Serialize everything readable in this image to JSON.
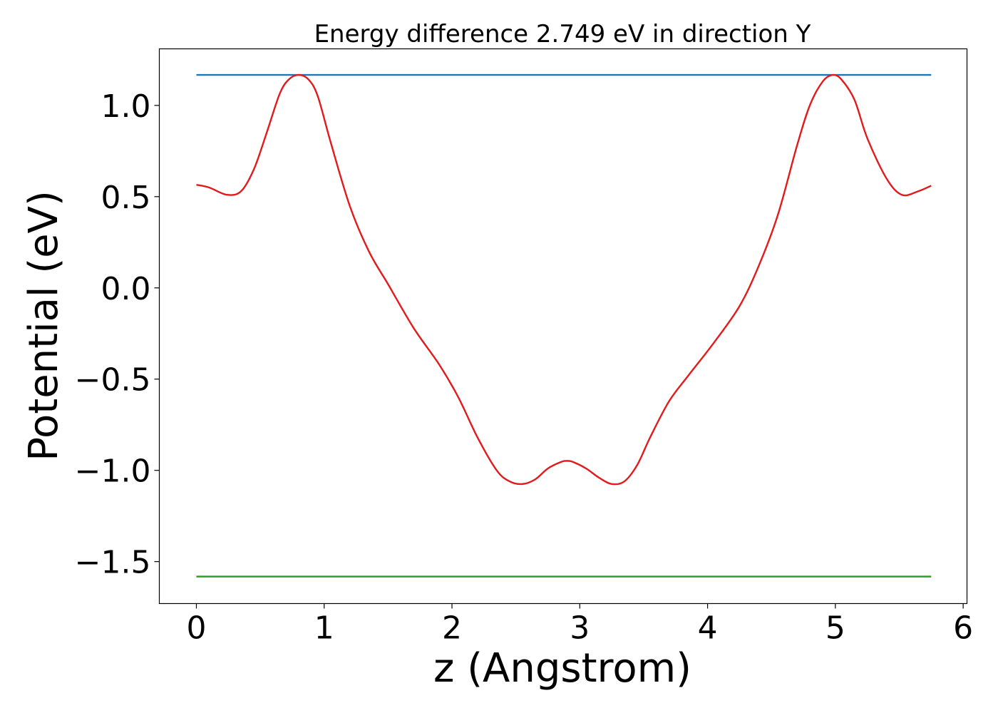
{
  "chart_data": {
    "type": "line",
    "title": "Energy difference 2.749 eV in direction Y",
    "xlabel": "z (Angstrom)",
    "ylabel": "Potential (eV)",
    "xlim": [
      -0.29,
      6.03
    ],
    "ylim": [
      -1.73,
      1.31
    ],
    "xticks": [
      0,
      1,
      2,
      3,
      4,
      5,
      6
    ],
    "xtick_labels": [
      "0",
      "1",
      "2",
      "3",
      "4",
      "5",
      "6"
    ],
    "yticks": [
      1.0,
      0.5,
      0.0,
      -0.5,
      -1.0,
      -1.5
    ],
    "ytick_labels": [
      "1.0",
      "0.5",
      "0.0",
      "−0.5",
      "−1.0",
      "−1.5"
    ],
    "grid": false,
    "series": [
      {
        "color": "#1f77b4",
        "x": [
          0,
          5.75
        ],
        "y": [
          1.167,
          1.167
        ]
      },
      {
        "color": "#2ca02c",
        "x": [
          0,
          5.75
        ],
        "y": [
          -1.582,
          -1.582
        ]
      },
      {
        "color": "#e31a1c",
        "x": [
          0,
          0.1,
          0.24,
          0.35,
          0.45,
          0.55,
          0.65,
          0.72,
          0.8,
          0.88,
          0.95,
          1.05,
          1.2,
          1.35,
          1.5,
          1.7,
          1.9,
          2.05,
          2.2,
          2.35,
          2.45,
          2.55,
          2.65,
          2.75,
          2.85,
          2.9,
          2.95,
          3.05,
          3.15,
          3.25,
          3.35,
          3.45,
          3.55,
          3.7,
          3.85,
          4.05,
          4.25,
          4.4,
          4.55,
          4.7,
          4.8,
          4.9,
          4.98,
          5.05,
          5.15,
          5.25,
          5.4,
          5.52,
          5.65,
          5.75
        ],
        "y": [
          0.565,
          0.55,
          0.51,
          0.53,
          0.65,
          0.85,
          1.06,
          1.14,
          1.167,
          1.14,
          1.05,
          0.8,
          0.45,
          0.2,
          0.02,
          -0.22,
          -0.42,
          -0.6,
          -0.82,
          -1.0,
          -1.06,
          -1.075,
          -1.05,
          -0.99,
          -0.955,
          -0.948,
          -0.955,
          -0.99,
          -1.04,
          -1.075,
          -1.06,
          -0.97,
          -0.82,
          -0.62,
          -0.48,
          -0.3,
          -0.1,
          0.12,
          0.4,
          0.78,
          1.0,
          1.13,
          1.167,
          1.14,
          1.03,
          0.82,
          0.6,
          0.51,
          0.53,
          0.56
        ]
      }
    ]
  }
}
